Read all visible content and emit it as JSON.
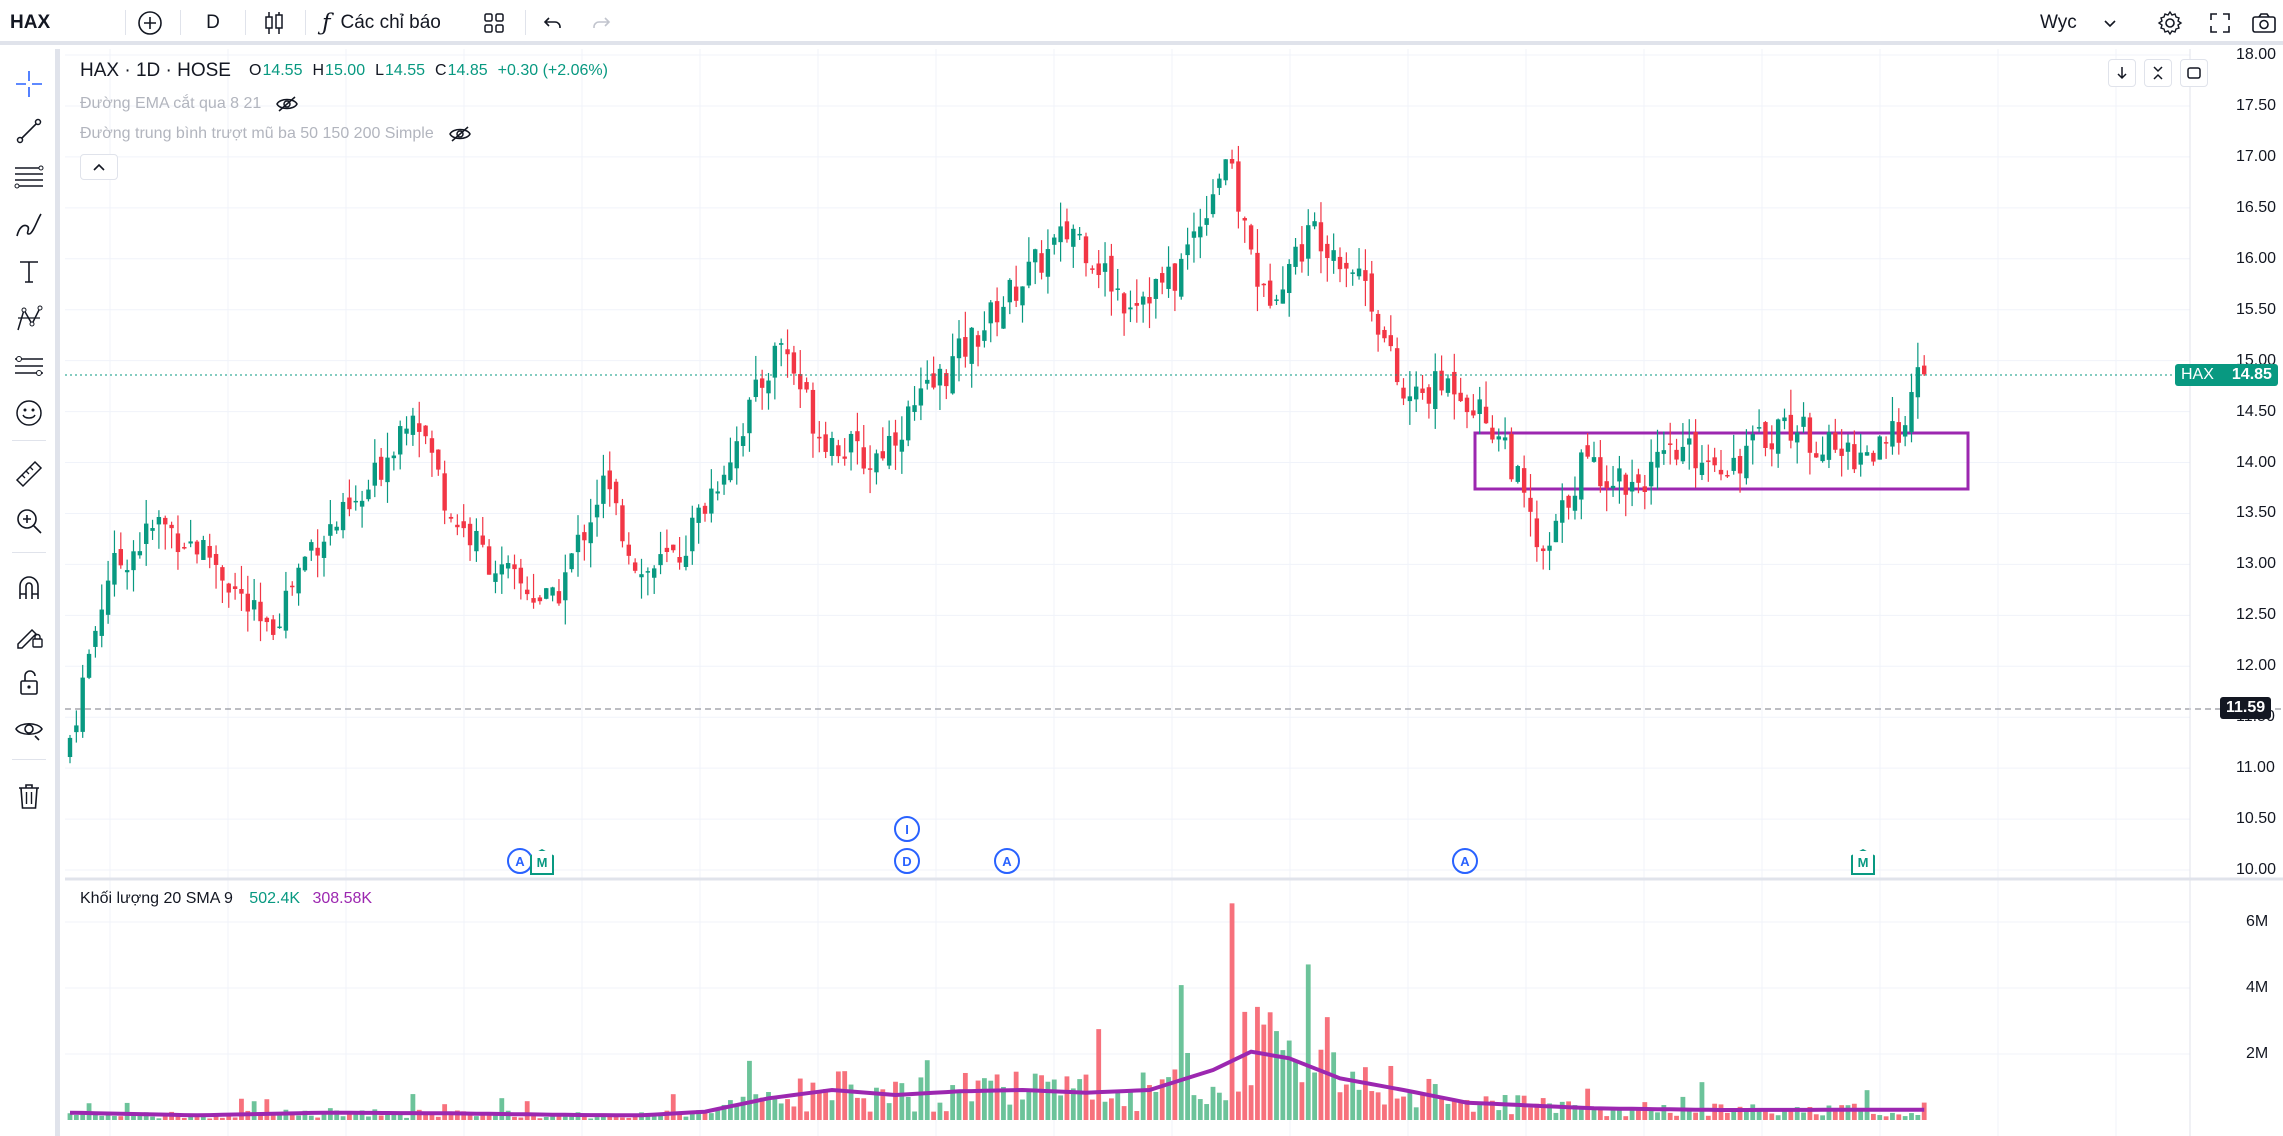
{
  "topbar": {
    "symbol": "HAX",
    "interval": "D",
    "indicators_label": "Các chỉ báo",
    "user_label": "Wyc"
  },
  "legend": {
    "symbol_line": "HAX · 1D · HOSE",
    "open_label": "O",
    "open": "14.55",
    "high_label": "H",
    "high": "15.00",
    "low_label": "L",
    "low": "14.55",
    "close_label": "C",
    "close": "14.85",
    "change": "+0.30 (+2.06%)",
    "indicator1": "Đường EMA cắt qua 8 21",
    "indicator2": "Đường trung bình trượt mũ ba 50 150 200 Simple"
  },
  "volume_legend": {
    "title": "Khối lượng 20 SMA 9",
    "value1": "502.4K",
    "value2": "308.58K"
  },
  "price_axis": {
    "ticks": [
      "18.00",
      "17.50",
      "17.00",
      "16.50",
      "16.00",
      "15.50",
      "15.00",
      "14.50",
      "14.00",
      "13.50",
      "13.00",
      "12.50",
      "12.00",
      "11.50",
      "11.00",
      "10.50",
      "10.00"
    ],
    "current_symbol": "HAX",
    "current_price": "14.85",
    "crosshair_price": "11.59"
  },
  "volume_axis": {
    "ticks": [
      "6M",
      "4M",
      "2M"
    ]
  },
  "events": [
    {
      "letter": "A",
      "type": "circle"
    },
    {
      "letter": "M",
      "type": "flag"
    },
    {
      "letter": "I",
      "type": "circle"
    },
    {
      "letter": "D",
      "type": "circle"
    },
    {
      "letter": "A",
      "type": "circle"
    },
    {
      "letter": "A",
      "type": "circle"
    },
    {
      "letter": "M",
      "type": "flag"
    }
  ],
  "colors": {
    "up": "#089981",
    "down": "#f23645",
    "up_volume": "#6cc39a",
    "down_volume": "#f7717c",
    "sma_line": "#9c27b0",
    "rectangle": "#9c27b0",
    "event": "#2962ff"
  },
  "chart_data": {
    "type": "candlestick",
    "symbol": "HAX",
    "interval": "1D",
    "exchange": "HOSE",
    "ylim": [
      10.0,
      18.0
    ],
    "volume_ylim": [
      0,
      6600000
    ],
    "price_series": [
      {
        "t": 0,
        "close": 11.3
      },
      {
        "t": 6,
        "close": 12.9
      },
      {
        "t": 14,
        "close": 13.4
      },
      {
        "t": 22,
        "close": 13.1
      },
      {
        "t": 31,
        "close": 12.3
      },
      {
        "t": 38,
        "close": 13.2
      },
      {
        "t": 46,
        "close": 13.6
      },
      {
        "t": 54,
        "close": 14.6
      },
      {
        "t": 60,
        "close": 13.5
      },
      {
        "t": 68,
        "close": 12.9
      },
      {
        "t": 76,
        "close": 12.6
      },
      {
        "t": 84,
        "close": 13.8
      },
      {
        "t": 90,
        "close": 12.9
      },
      {
        "t": 96,
        "close": 13.1
      },
      {
        "t": 104,
        "close": 14.1
      },
      {
        "t": 112,
        "close": 15.2
      },
      {
        "t": 118,
        "close": 14.3
      },
      {
        "t": 126,
        "close": 14.0
      },
      {
        "t": 134,
        "close": 14.6
      },
      {
        "t": 142,
        "close": 15.2
      },
      {
        "t": 150,
        "close": 15.8
      },
      {
        "t": 158,
        "close": 16.3
      },
      {
        "t": 166,
        "close": 15.6
      },
      {
        "t": 174,
        "close": 15.8
      },
      {
        "t": 182,
        "close": 17.0
      },
      {
        "t": 188,
        "close": 15.6
      },
      {
        "t": 196,
        "close": 16.3
      },
      {
        "t": 204,
        "close": 15.8
      },
      {
        "t": 210,
        "close": 14.6
      },
      {
        "t": 218,
        "close": 14.8
      },
      {
        "t": 226,
        "close": 14.2
      },
      {
        "t": 232,
        "close": 13.0
      },
      {
        "t": 238,
        "close": 14.0
      },
      {
        "t": 246,
        "close": 13.8
      },
      {
        "t": 254,
        "close": 14.1
      },
      {
        "t": 262,
        "close": 14.0
      },
      {
        "t": 270,
        "close": 14.4
      },
      {
        "t": 278,
        "close": 14.1
      },
      {
        "t": 286,
        "close": 14.1
      },
      {
        "t": 292,
        "close": 14.9
      }
    ],
    "sma_volume_series": [
      {
        "t": 0,
        "v": 220000
      },
      {
        "t": 20,
        "v": 140000
      },
      {
        "t": 40,
        "v": 220000
      },
      {
        "t": 60,
        "v": 200000
      },
      {
        "t": 80,
        "v": 150000
      },
      {
        "t": 90,
        "v": 140000
      },
      {
        "t": 100,
        "v": 250000
      },
      {
        "t": 110,
        "v": 650000
      },
      {
        "t": 120,
        "v": 900000
      },
      {
        "t": 130,
        "v": 750000
      },
      {
        "t": 140,
        "v": 860000
      },
      {
        "t": 150,
        "v": 900000
      },
      {
        "t": 160,
        "v": 820000
      },
      {
        "t": 170,
        "v": 900000
      },
      {
        "t": 180,
        "v": 1500000
      },
      {
        "t": 186,
        "v": 2050000
      },
      {
        "t": 192,
        "v": 1850000
      },
      {
        "t": 200,
        "v": 1250000
      },
      {
        "t": 210,
        "v": 900000
      },
      {
        "t": 220,
        "v": 520000
      },
      {
        "t": 240,
        "v": 350000
      },
      {
        "t": 260,
        "v": 300000
      },
      {
        "t": 292,
        "v": 310000
      }
    ],
    "rectangle": {
      "t_start": 228,
      "t_end": 307,
      "price_top": 14.29,
      "price_bottom": 13.73
    },
    "current_price": 14.85,
    "crosshair_price": 11.59
  }
}
